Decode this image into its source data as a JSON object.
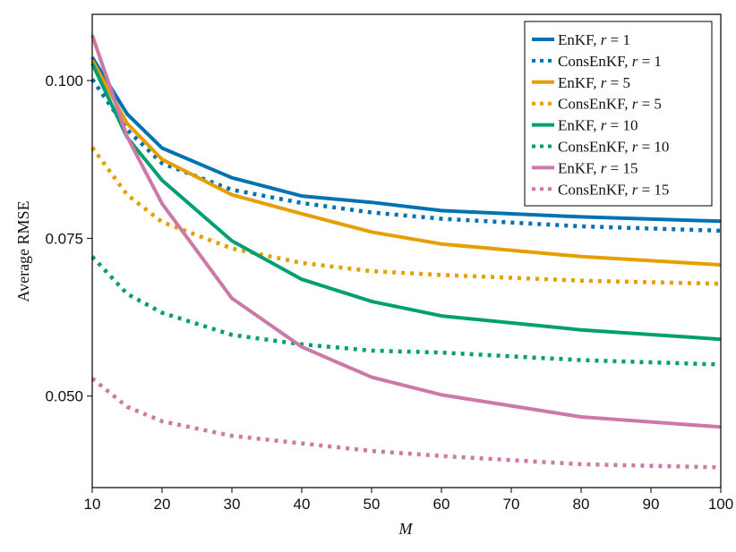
{
  "chart_data": {
    "type": "line",
    "title": "",
    "xlabel": "M",
    "ylabel": "Average RMSE",
    "xlim": [
      10,
      100
    ],
    "ylim": [
      0.0355,
      0.1105
    ],
    "xticks": [
      10,
      20,
      30,
      40,
      50,
      60,
      70,
      80,
      90,
      100
    ],
    "xtick_labels": [
      "10",
      "20",
      "30",
      "40",
      "50",
      "60",
      "70",
      "80",
      "90",
      "100"
    ],
    "yticks": [
      0.05,
      0.075,
      0.1
    ],
    "ytick_labels": [
      "0.050",
      "0.075",
      "0.100"
    ],
    "grid": false,
    "legend_position": "top-right",
    "x": [
      10,
      15,
      20,
      30,
      40,
      50,
      60,
      80,
      100
    ],
    "series": [
      {
        "name": "EnKF",
        "r": "1",
        "color": "#0072B2",
        "style": "solid",
        "values": [
          0.1037,
          0.0947,
          0.0893,
          0.0846,
          0.0817,
          0.0807,
          0.0794,
          0.0784,
          0.0777
        ]
      },
      {
        "name": "ConsEnKF",
        "r": "1",
        "color": "#0072B2",
        "style": "dotted",
        "values": [
          0.1002,
          0.0922,
          0.0869,
          0.0827,
          0.0806,
          0.0791,
          0.0781,
          0.0769,
          0.0762
        ]
      },
      {
        "name": "EnKF",
        "r": "5",
        "color": "#E69F00",
        "style": "solid",
        "values": [
          0.1032,
          0.0932,
          0.0875,
          0.0819,
          0.0789,
          0.076,
          0.0741,
          0.0721,
          0.0708
        ]
      },
      {
        "name": "ConsEnKF",
        "r": "5",
        "color": "#E69F00",
        "style": "dotted",
        "values": [
          0.0894,
          0.0819,
          0.0776,
          0.0734,
          0.0711,
          0.0698,
          0.0692,
          0.0683,
          0.0678
        ]
      },
      {
        "name": "EnKF",
        "r": "10",
        "color": "#009E73",
        "style": "solid",
        "values": [
          0.1027,
          0.091,
          0.0842,
          0.0746,
          0.0685,
          0.065,
          0.0627,
          0.0605,
          0.059
        ]
      },
      {
        "name": "ConsEnKF",
        "r": "10",
        "color": "#009E73",
        "style": "dotted",
        "values": [
          0.0721,
          0.0662,
          0.0632,
          0.0597,
          0.0582,
          0.0572,
          0.0569,
          0.0557,
          0.055
        ]
      },
      {
        "name": "EnKF",
        "r": "15",
        "color": "#CC79A7",
        "style": "solid",
        "values": [
          0.1072,
          0.0911,
          0.0805,
          0.0655,
          0.0578,
          0.053,
          0.0502,
          0.0467,
          0.0451
        ]
      },
      {
        "name": "ConsEnKF",
        "r": "15",
        "color": "#CC79A7",
        "style": "dotted",
        "values": [
          0.0528,
          0.0483,
          0.046,
          0.0437,
          0.0425,
          0.0413,
          0.0405,
          0.0392,
          0.0387
        ]
      }
    ]
  }
}
